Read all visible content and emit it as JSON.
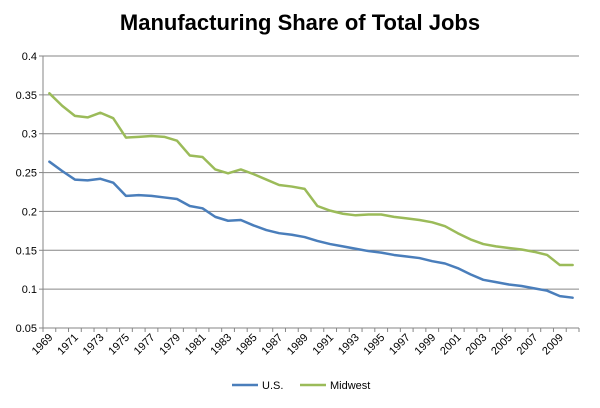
{
  "chart_data": {
    "type": "line",
    "title": "Manufacturing Share of Total Jobs",
    "xlabel": "",
    "ylabel": "",
    "x": [
      1969,
      1970,
      1971,
      1972,
      1973,
      1974,
      1975,
      1976,
      1977,
      1978,
      1979,
      1980,
      1981,
      1982,
      1983,
      1984,
      1985,
      1986,
      1987,
      1988,
      1989,
      1990,
      1991,
      1992,
      1993,
      1994,
      1995,
      1996,
      1997,
      1998,
      1999,
      2000,
      2001,
      2002,
      2003,
      2004,
      2005,
      2006,
      2007,
      2008,
      2009,
      2010
    ],
    "x_tick_labels": [
      "1969",
      "1971",
      "1973",
      "1975",
      "1977",
      "1979",
      "1981",
      "1983",
      "1985",
      "1987",
      "1989",
      "1991",
      "1993",
      "1995",
      "1997",
      "1999",
      "2001",
      "2003",
      "2005",
      "2007",
      "2009"
    ],
    "ylim": [
      0.05,
      0.4
    ],
    "y_ticks": [
      0.05,
      0.1,
      0.15,
      0.2,
      0.25,
      0.3,
      0.35,
      0.4
    ],
    "y_tick_labels": [
      "0.05",
      "0.1",
      "0.15",
      "0.2",
      "0.25",
      "0.3",
      "0.35",
      "0.4"
    ],
    "grid": "horizontal",
    "legend_position": "bottom",
    "series": [
      {
        "name": "U.S.",
        "color": "#4a7ebb",
        "values": [
          0.264,
          0.252,
          0.241,
          0.24,
          0.242,
          0.237,
          0.22,
          0.221,
          0.22,
          0.218,
          0.216,
          0.207,
          0.204,
          0.193,
          0.188,
          0.189,
          0.182,
          0.176,
          0.172,
          0.17,
          0.167,
          0.162,
          0.158,
          0.155,
          0.152,
          0.149,
          0.147,
          0.144,
          0.142,
          0.14,
          0.136,
          0.133,
          0.127,
          0.119,
          0.112,
          0.109,
          0.106,
          0.104,
          0.101,
          0.098,
          0.091,
          0.089
        ]
      },
      {
        "name": "Midwest",
        "color": "#9bbb59",
        "values": [
          0.352,
          0.336,
          0.323,
          0.321,
          0.327,
          0.32,
          0.295,
          0.296,
          0.297,
          0.296,
          0.291,
          0.272,
          0.27,
          0.254,
          0.249,
          0.254,
          0.248,
          0.241,
          0.234,
          0.232,
          0.229,
          0.207,
          0.201,
          0.197,
          0.195,
          0.196,
          0.196,
          0.193,
          0.191,
          0.189,
          0.186,
          0.181,
          0.172,
          0.164,
          0.158,
          0.155,
          0.153,
          0.151,
          0.148,
          0.144,
          0.131,
          0.131
        ]
      }
    ]
  }
}
